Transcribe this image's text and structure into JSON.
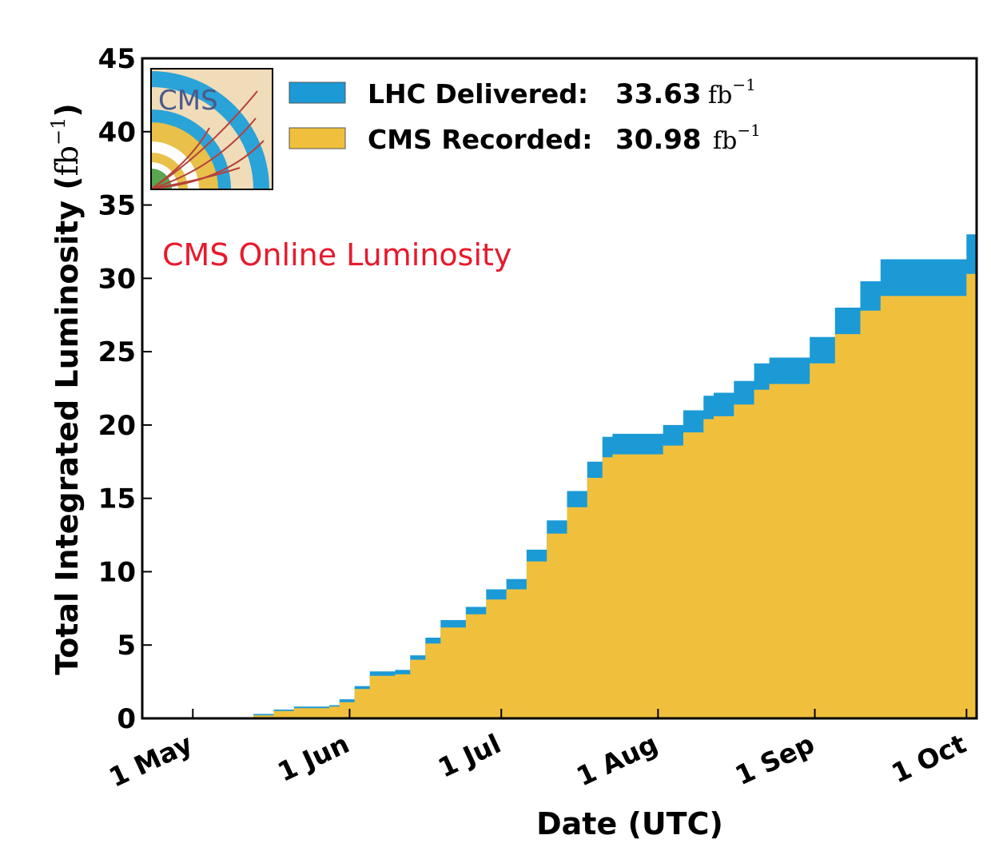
{
  "chart_data": {
    "type": "area",
    "title": "",
    "annotation": "CMS Online Luminosity",
    "xlabel": "Date (UTC)",
    "ylabel_text": "Total Integrated Luminosity (",
    "ylabel_unit": "fb",
    "ylabel_exp": "−1",
    "ylabel_close": ")",
    "xlim": [
      "2016-04-21",
      "2016-10-03"
    ],
    "ylim": [
      0,
      45
    ],
    "y_ticks": [
      "0",
      "5",
      "10",
      "15",
      "20",
      "25",
      "30",
      "35",
      "40",
      "45"
    ],
    "x_ticks": [
      {
        "date": "2016-05-01",
        "label": "1 May"
      },
      {
        "date": "2016-06-01",
        "label": "1 Jun"
      },
      {
        "date": "2016-07-01",
        "label": "1 Jul"
      },
      {
        "date": "2016-08-01",
        "label": "1 Aug"
      },
      {
        "date": "2016-09-01",
        "label": "1 Sep"
      },
      {
        "date": "2016-10-01",
        "label": "1 Oct"
      }
    ],
    "legend_placement": "top-left",
    "logo_text": "CMS",
    "series": [
      {
        "name": "LHC Delivered:",
        "total": "33.63",
        "unit": "fb",
        "unit_exp": "−1",
        "color": "#1b9ad6",
        "x": [
          "2016-04-21",
          "2016-05-10",
          "2016-05-13",
          "2016-05-17",
          "2016-05-21",
          "2016-05-24",
          "2016-05-28",
          "2016-05-30",
          "2016-06-02",
          "2016-06-05",
          "2016-06-07",
          "2016-06-10",
          "2016-06-13",
          "2016-06-16",
          "2016-06-19",
          "2016-06-21",
          "2016-06-24",
          "2016-06-28",
          "2016-07-02",
          "2016-07-06",
          "2016-07-10",
          "2016-07-14",
          "2016-07-18",
          "2016-07-21",
          "2016-07-23",
          "2016-07-30",
          "2016-08-02",
          "2016-08-06",
          "2016-08-10",
          "2016-08-12",
          "2016-08-16",
          "2016-08-20",
          "2016-08-23",
          "2016-08-26",
          "2016-08-31",
          "2016-09-05",
          "2016-09-10",
          "2016-09-14",
          "2016-09-22",
          "2016-09-28",
          "2016-10-01",
          "2016-10-03"
        ],
        "y": [
          0,
          0,
          0.3,
          0.6,
          0.8,
          0.8,
          0.9,
          1.3,
          2.2,
          3.2,
          3.2,
          3.3,
          4.3,
          5.5,
          6.7,
          6.7,
          7.6,
          8.8,
          9.5,
          11.5,
          13.5,
          15.5,
          17.5,
          19.2,
          19.4,
          19.4,
          20.0,
          21.0,
          22.0,
          22.2,
          23.0,
          24.2,
          24.6,
          24.6,
          26.0,
          28.0,
          29.8,
          31.3,
          31.3,
          31.3,
          33.0,
          33.63
        ]
      },
      {
        "name": "CMS Recorded:",
        "total": "30.98",
        "unit": "fb",
        "unit_exp": "−1",
        "color": "#f0c03d",
        "x": [
          "2016-04-21",
          "2016-05-10",
          "2016-05-13",
          "2016-05-17",
          "2016-05-21",
          "2016-05-24",
          "2016-05-28",
          "2016-05-30",
          "2016-06-02",
          "2016-06-05",
          "2016-06-07",
          "2016-06-10",
          "2016-06-13",
          "2016-06-16",
          "2016-06-19",
          "2016-06-21",
          "2016-06-24",
          "2016-06-28",
          "2016-07-02",
          "2016-07-06",
          "2016-07-10",
          "2016-07-14",
          "2016-07-18",
          "2016-07-21",
          "2016-07-23",
          "2016-07-30",
          "2016-08-02",
          "2016-08-06",
          "2016-08-10",
          "2016-08-12",
          "2016-08-16",
          "2016-08-20",
          "2016-08-23",
          "2016-08-26",
          "2016-08-31",
          "2016-09-05",
          "2016-09-10",
          "2016-09-14",
          "2016-09-22",
          "2016-09-28",
          "2016-10-01",
          "2016-10-03"
        ],
        "y": [
          0,
          0,
          0.2,
          0.5,
          0.7,
          0.7,
          0.8,
          1.1,
          2.0,
          2.9,
          2.9,
          3.0,
          4.0,
          5.1,
          6.2,
          6.2,
          7.1,
          8.1,
          8.8,
          10.7,
          12.6,
          14.4,
          16.4,
          17.8,
          18.0,
          18.0,
          18.6,
          19.5,
          20.4,
          20.6,
          21.4,
          22.4,
          22.8,
          22.8,
          24.2,
          26.2,
          27.8,
          28.8,
          28.8,
          28.8,
          30.3,
          30.98
        ]
      }
    ]
  }
}
